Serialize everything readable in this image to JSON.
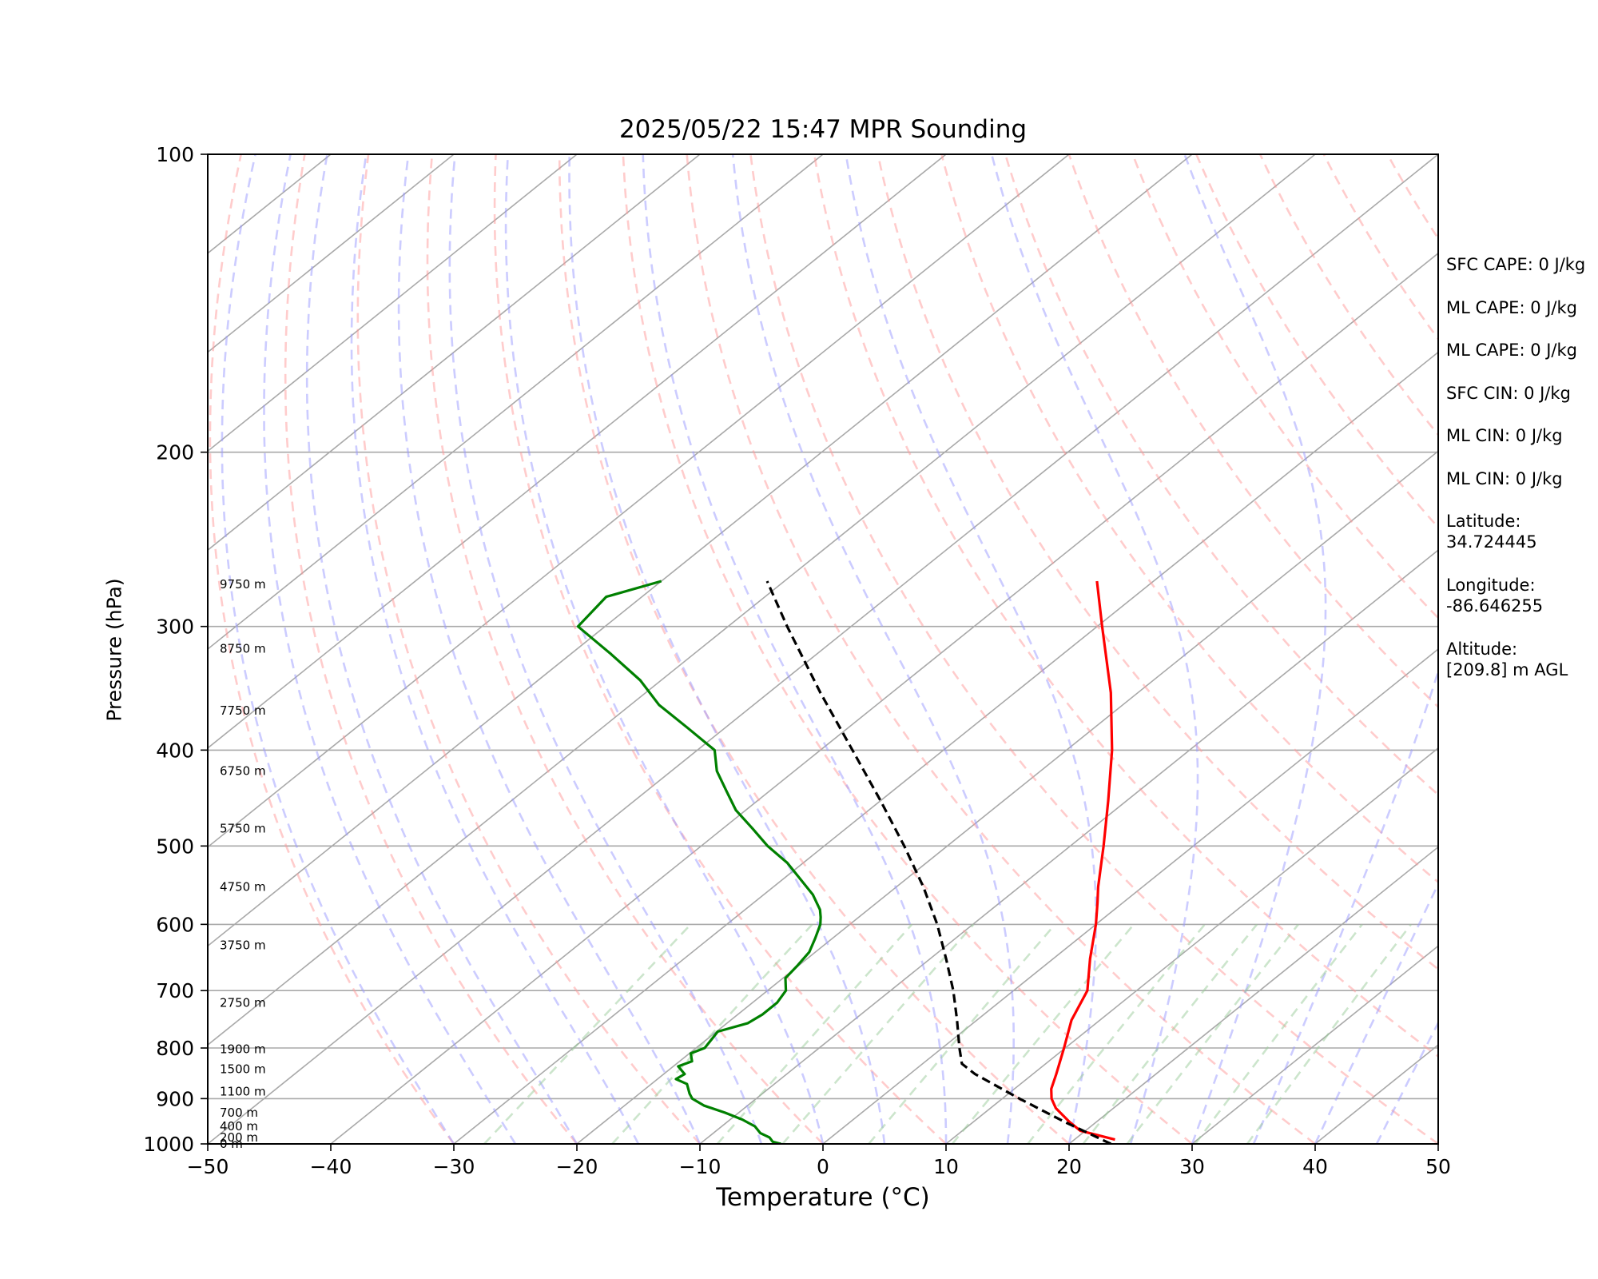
{
  "chart_data": {
    "type": "line",
    "title": "2025/05/22 15:47 MPR Sounding",
    "xlabel": "Temperature (°C)",
    "ylabel": "Pressure (hPa)",
    "xlim": [
      -50,
      50
    ],
    "ylim": [
      1000,
      100
    ],
    "y_scale": "log",
    "skew": true,
    "grid": true,
    "x_ticks": [
      "−50",
      "−40",
      "−30",
      "−20",
      "−10",
      "0",
      "10",
      "20",
      "30",
      "40",
      "50"
    ],
    "x_tick_values": [
      -50,
      -40,
      -30,
      -20,
      -10,
      0,
      10,
      20,
      30,
      40,
      50
    ],
    "y_ticks": [
      "1000",
      "900",
      "800",
      "700",
      "600",
      "500",
      "400",
      "300",
      "200",
      "100"
    ],
    "y_tick_values": [
      1000,
      900,
      800,
      700,
      600,
      500,
      400,
      300,
      200,
      100
    ],
    "series": [
      {
        "kind": "temperature",
        "color": "#ff0000",
        "dash": "solid",
        "pressure": [
          990,
          970,
          950,
          920,
          900,
          880,
          850,
          800,
          750,
          700,
          650,
          600,
          570,
          550,
          500,
          450,
          400,
          350,
          300,
          270
        ],
        "temperature": [
          23.3,
          19.6,
          17.8,
          15.3,
          14.0,
          13.0,
          11.9,
          9.9,
          7.7,
          6.0,
          3.0,
          0.0,
          -2.1,
          -3.6,
          -7.3,
          -11.5,
          -16.3,
          -22.2,
          -29.6,
          -34.6
        ]
      },
      {
        "kind": "dewpoint",
        "color": "#008000",
        "dash": "solid",
        "pressure": [
          1000,
          995,
          985,
          975,
          960,
          945,
          930,
          915,
          900,
          890,
          870,
          860,
          850,
          835,
          825,
          810,
          800,
          790,
          770,
          755,
          740,
          720,
          700,
          680,
          660,
          640,
          620,
          600,
          590,
          580,
          560,
          540,
          520,
          500,
          480,
          460,
          440,
          420,
          400,
          380,
          360,
          340,
          320,
          300,
          280,
          270
        ],
        "temperature": [
          -3.4,
          -4.3,
          -5.0,
          -6.2,
          -7.3,
          -9.0,
          -11.1,
          -13.5,
          -15.2,
          -15.9,
          -17.1,
          -18.5,
          -18.3,
          -19.6,
          -19.0,
          -19.9,
          -19.3,
          -19.5,
          -19.9,
          -18.3,
          -18.0,
          -18.0,
          -18.5,
          -19.8,
          -20.1,
          -20.5,
          -21.4,
          -22.4,
          -23.1,
          -23.9,
          -26.0,
          -28.6,
          -31.3,
          -34.6,
          -37.6,
          -40.8,
          -43.5,
          -46.3,
          -48.6,
          -53.0,
          -57.7,
          -61.7,
          -66.7,
          -72.2,
          -72.9,
          -70.0
        ]
      },
      {
        "kind": "parcel",
        "color": "#000000",
        "dash": "dashed",
        "pressure": [
          1000,
          950,
          900,
          850,
          830,
          800,
          750,
          700,
          650,
          600,
          550,
          500,
          450,
          400,
          350,
          300,
          270
        ],
        "temperature": [
          23.4,
          17.4,
          11.4,
          5.3,
          3.2,
          1.4,
          -1.6,
          -4.9,
          -8.7,
          -12.9,
          -17.8,
          -23.5,
          -30.0,
          -37.4,
          -45.8,
          -55.2,
          -61.4
        ]
      }
    ],
    "height_labels": [
      {
        "text": "0 m",
        "pressure": 1000
      },
      {
        "text": "200 m",
        "pressure": 985
      },
      {
        "text": "400 m",
        "pressure": 960
      },
      {
        "text": "700 m",
        "pressure": 930
      },
      {
        "text": "1100 m",
        "pressure": 885
      },
      {
        "text": "1500 m",
        "pressure": 840
      },
      {
        "text": "1900 m",
        "pressure": 802
      },
      {
        "text": "2750 m",
        "pressure": 720
      },
      {
        "text": "3750 m",
        "pressure": 630
      },
      {
        "text": "4750 m",
        "pressure": 550
      },
      {
        "text": "5750 m",
        "pressure": 480
      },
      {
        "text": "6750 m",
        "pressure": 420
      },
      {
        "text": "7750 m",
        "pressure": 365
      },
      {
        "text": "8750 m",
        "pressure": 316
      },
      {
        "text": "9750 m",
        "pressure": 272
      }
    ],
    "background_lines": {
      "isotherm_color": "#a9a9a9",
      "isobar_color": "#a9a9a9",
      "dry_adiabat_color": "#ff9999",
      "moist_adiabat_color": "#9999ff",
      "mixing_ratio_color": "#99cc99"
    }
  },
  "params": [
    "SFC CAPE: 0 J/kg",
    "ML CAPE: 0 J/kg",
    "ML CAPE: 0 J/kg",
    "SFC CIN: 0 J/kg",
    "ML CIN: 0 J/kg",
    "ML CIN: 0 J/kg"
  ],
  "location": {
    "latitude_label": "Latitude:",
    "latitude_value": "34.724445",
    "longitude_label": "Longitude:",
    "longitude_value": "-86.646255",
    "altitude_label": "Altitude:",
    "altitude_value": "[209.8] m AGL"
  }
}
